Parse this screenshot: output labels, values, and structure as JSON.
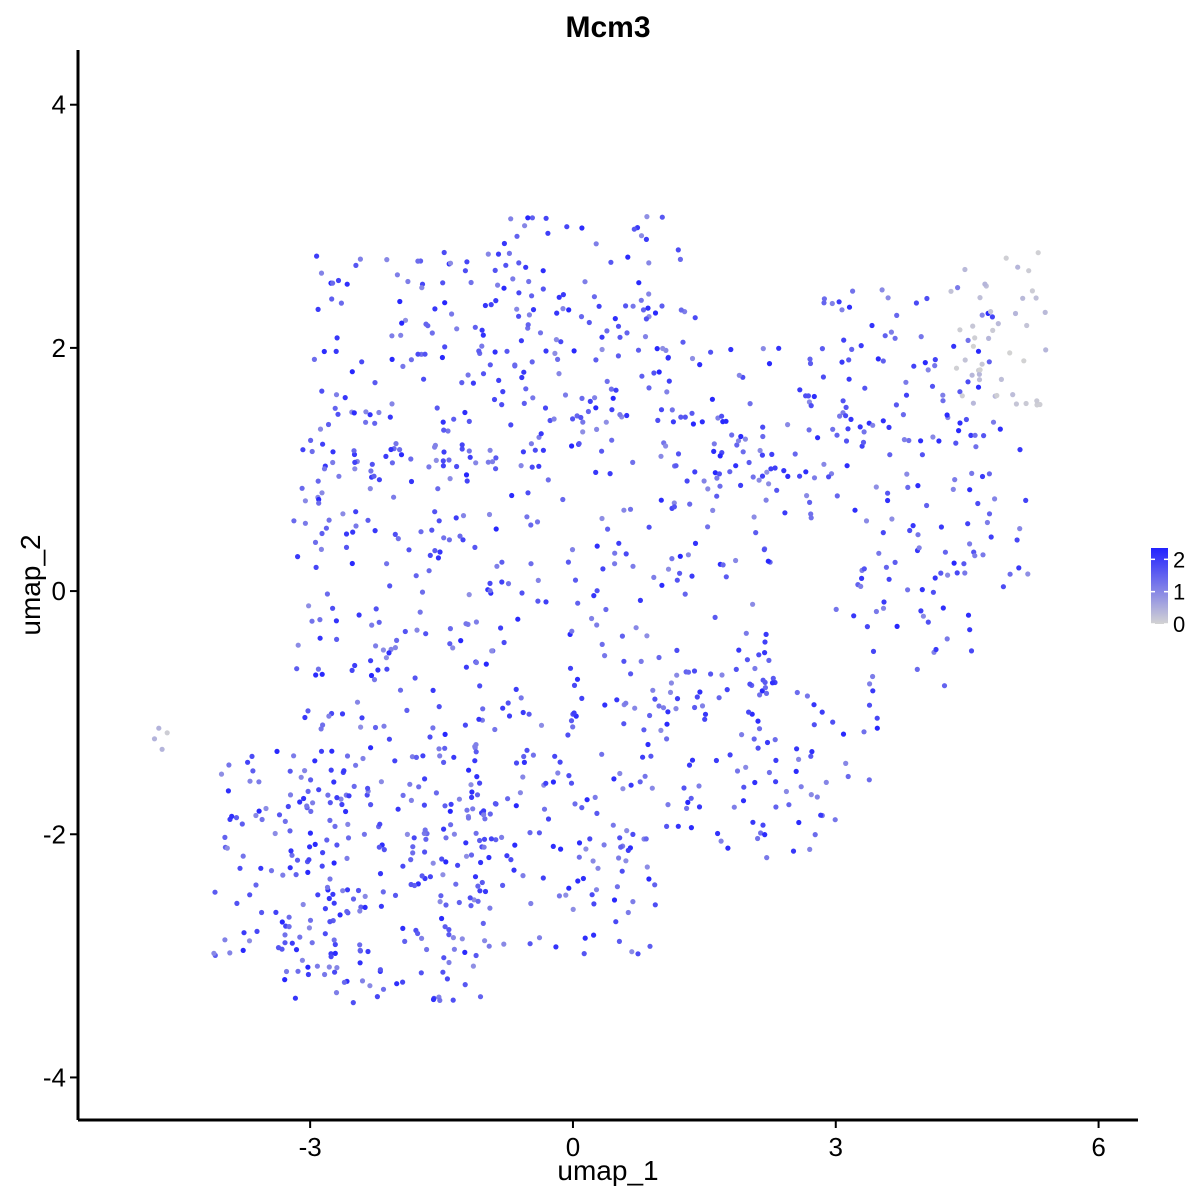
{
  "chart_data": {
    "type": "scatter",
    "title": "Mcm3",
    "xlabel": "umap_1",
    "ylabel": "umap_2",
    "xlim": [
      -5.65,
      6.45
    ],
    "ylim": [
      -4.35,
      4.45
    ],
    "x_ticks": [
      -3,
      0,
      3,
      6
    ],
    "y_ticks": [
      -4,
      -2,
      0,
      2,
      4
    ],
    "x_tick_labels": [
      "-3",
      "0",
      "3",
      "6"
    ],
    "y_tick_labels": [
      "-4",
      "-2",
      "0",
      "2",
      "4"
    ],
    "grid": false,
    "color_scale": {
      "low": "#d3d3d3",
      "high": "#2222ff",
      "min": 0,
      "max": 2.35,
      "legend_ticks": [
        0,
        1,
        2
      ],
      "legend_tick_labels": [
        "0",
        "1",
        "2"
      ],
      "legend_position": "right"
    },
    "regions": [
      {
        "xrange": [
          -3.3,
          -1.0
        ],
        "yrange": [
          -3.4,
          -1.4
        ],
        "n": 190,
        "expr": [
          0.9,
          2.3
        ]
      },
      {
        "xrange": [
          -4.1,
          -2.6
        ],
        "yrange": [
          -3.0,
          -1.3
        ],
        "n": 80,
        "expr": [
          0.9,
          2.3
        ]
      },
      {
        "xrange": [
          -1.2,
          1.0
        ],
        "yrange": [
          -3.0,
          -0.8
        ],
        "n": 150,
        "expr": [
          0.9,
          2.3
        ]
      },
      {
        "xrange": [
          -3.2,
          -0.8
        ],
        "yrange": [
          -1.4,
          1.2
        ],
        "n": 180,
        "expr": [
          0.9,
          2.3
        ]
      },
      {
        "xrange": [
          -3.0,
          -0.2
        ],
        "yrange": [
          1.0,
          2.8
        ],
        "n": 150,
        "expr": [
          0.9,
          2.3
        ]
      },
      {
        "xrange": [
          -0.8,
          1.3
        ],
        "yrange": [
          2.2,
          3.1
        ],
        "n": 40,
        "expr": [
          0.9,
          2.3
        ]
      },
      {
        "xrange": [
          -0.8,
          2.3
        ],
        "yrange": [
          -1.0,
          1.5
        ],
        "n": 160,
        "expr": [
          0.9,
          2.3
        ]
      },
      {
        "xrange": [
          -0.5,
          1.5
        ],
        "yrange": [
          1.4,
          2.4
        ],
        "n": 60,
        "expr": [
          0.9,
          2.3
        ]
      },
      {
        "xrange": [
          1.0,
          3.0
        ],
        "yrange": [
          -2.2,
          -0.6
        ],
        "n": 70,
        "expr": [
          0.9,
          2.3
        ]
      },
      {
        "xrange": [
          2.0,
          3.6
        ],
        "yrange": [
          -1.6,
          -0.7
        ],
        "n": 30,
        "expr": [
          0.9,
          2.3
        ]
      },
      {
        "xrange": [
          1.4,
          3.2
        ],
        "yrange": [
          0.6,
          2.0
        ],
        "n": 60,
        "expr": [
          0.9,
          2.3
        ]
      },
      {
        "xrange": [
          2.6,
          4.8
        ],
        "yrange": [
          1.2,
          2.5
        ],
        "n": 70,
        "expr": [
          0.9,
          2.3
        ]
      },
      {
        "xrange": [
          3.2,
          5.2
        ],
        "yrange": [
          0.0,
          1.4
        ],
        "n": 70,
        "expr": [
          0.9,
          2.3
        ]
      },
      {
        "xrange": [
          3.0,
          4.6
        ],
        "yrange": [
          -0.8,
          0.2
        ],
        "n": 25,
        "expr": [
          0.9,
          2.3
        ]
      },
      {
        "xrange": [
          4.3,
          5.4
        ],
        "yrange": [
          1.5,
          2.9
        ],
        "n": 45,
        "expr": [
          0.0,
          0.4
        ]
      },
      {
        "xrange": [
          -4.8,
          -4.6
        ],
        "yrange": [
          -1.35,
          -1.1
        ],
        "n": 4,
        "expr": [
          0.0,
          0.6
        ]
      }
    ]
  }
}
